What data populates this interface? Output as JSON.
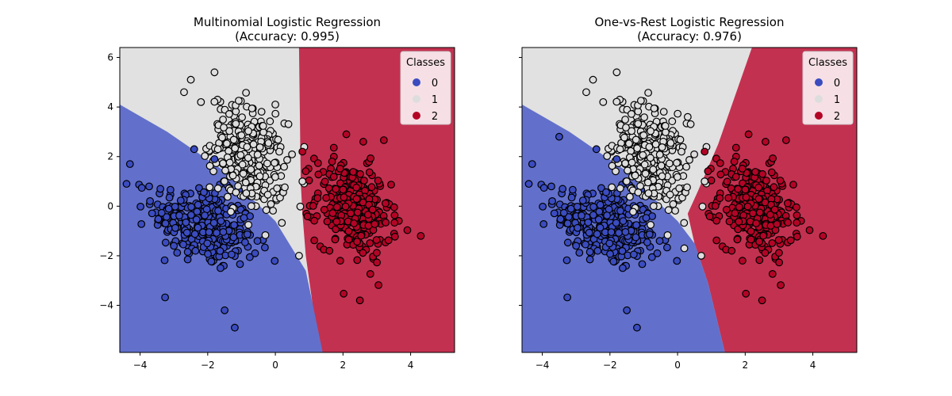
{
  "colors": {
    "class0": "#3b4cc0",
    "class1": "#dddddd",
    "class2": "#b40426",
    "region0": "#6270cb",
    "region1": "#e1e1e1",
    "region2": "#c33150",
    "marker_edge": "#000000"
  },
  "chart_data": [
    {
      "type": "scatter",
      "title_line1": "Multinomial Logistic Regression",
      "title_line2": "(Accuracy: 0.995)",
      "xlim": [
        -4.6,
        5.3
      ],
      "ylim": [
        -5.9,
        6.4
      ],
      "xticks": [
        -4,
        -2,
        0,
        2,
        4
      ],
      "yticks": [
        -4,
        -2,
        0,
        2,
        4,
        6
      ],
      "show_yticklabels": true,
      "grid": false,
      "legend": {
        "title": "Classes",
        "placement": "top-right",
        "entries": [
          {
            "label": "0",
            "class": 0
          },
          {
            "label": "1",
            "class": 1
          },
          {
            "label": "2",
            "class": 2
          }
        ]
      },
      "decision_boundaries": {
        "boundary_0_1": [
          [
            -4.6,
            4.1
          ],
          [
            -3.2,
            3.0
          ],
          [
            -1.6,
            1.5
          ],
          [
            0.0,
            -0.6
          ],
          [
            0.9,
            -2.6
          ],
          [
            1.4,
            -5.9
          ]
        ],
        "boundary_1_2": [
          [
            0.7,
            6.4
          ],
          [
            0.75,
            1.0
          ],
          [
            0.8,
            -0.3
          ],
          [
            0.9,
            -2.0
          ],
          [
            1.3,
            -5.9
          ]
        ]
      },
      "class_centers": [
        {
          "class": 0,
          "x": -2.1,
          "y": -0.8
        },
        {
          "class": 1,
          "x": -0.8,
          "y": 2.0
        },
        {
          "class": 2,
          "x": 2.3,
          "y": -0.1
        }
      ],
      "sample_points": [
        {
          "class": 0,
          "x": -4.3,
          "y": 1.7
        },
        {
          "class": 0,
          "x": -4.4,
          "y": 0.9
        },
        {
          "class": 0,
          "x": -3.4,
          "y": 0.7
        },
        {
          "class": 0,
          "x": -3.0,
          "y": -1.6
        },
        {
          "class": 0,
          "x": -1.5,
          "y": -4.2
        },
        {
          "class": 0,
          "x": -1.2,
          "y": -4.9
        },
        {
          "class": 0,
          "x": -0.6,
          "y": -1.9
        },
        {
          "class": 0,
          "x": -2.4,
          "y": 2.3
        },
        {
          "class": 0,
          "x": -1.8,
          "y": 1.9
        },
        {
          "class": 1,
          "x": -2.5,
          "y": 5.1
        },
        {
          "class": 1,
          "x": -1.8,
          "y": 5.4
        },
        {
          "class": 1,
          "x": -2.7,
          "y": 4.6
        },
        {
          "class": 1,
          "x": -2.2,
          "y": 4.2
        },
        {
          "class": 1,
          "x": 0.0,
          "y": 4.1
        },
        {
          "class": 1,
          "x": 0.7,
          "y": -2.0
        },
        {
          "class": 1,
          "x": -1.7,
          "y": 2.3
        },
        {
          "class": 1,
          "x": 0.8,
          "y": 1.0
        },
        {
          "class": 2,
          "x": 2.1,
          "y": 2.9
        },
        {
          "class": 2,
          "x": 2.6,
          "y": 2.6
        },
        {
          "class": 2,
          "x": 4.3,
          "y": -1.2
        },
        {
          "class": 2,
          "x": 2.5,
          "y": -3.8
        },
        {
          "class": 2,
          "x": 0.8,
          "y": 2.2
        },
        {
          "class": 2,
          "x": 1.6,
          "y": -1.8
        }
      ]
    },
    {
      "type": "scatter",
      "title_line1": "One-vs-Rest Logistic Regression",
      "title_line2": "(Accuracy: 0.976)",
      "xlim": [
        -4.6,
        5.3
      ],
      "ylim": [
        -5.9,
        6.4
      ],
      "xticks": [
        -4,
        -2,
        0,
        2,
        4
      ],
      "yticks": [
        -4,
        -2,
        0,
        2,
        4,
        6
      ],
      "show_yticklabels": false,
      "grid": false,
      "legend": {
        "title": "Classes",
        "placement": "top-right",
        "entries": [
          {
            "label": "0",
            "class": 0
          },
          {
            "label": "1",
            "class": 1
          },
          {
            "label": "2",
            "class": 2
          }
        ]
      },
      "decision_boundaries": {
        "boundary_0_1": [
          [
            -4.6,
            4.1
          ],
          [
            -3.2,
            3.0
          ],
          [
            -1.6,
            1.5
          ],
          [
            0.0,
            -0.6
          ],
          [
            0.5,
            -1.5
          ],
          [
            0.9,
            -3.1
          ],
          [
            1.4,
            -5.9
          ]
        ],
        "boundary_1_2": [
          [
            2.2,
            6.4
          ],
          [
            1.2,
            2.5
          ],
          [
            0.6,
            0.6
          ],
          [
            0.3,
            -0.3
          ],
          [
            0.5,
            -1.5
          ]
        ]
      },
      "class_centers": [
        {
          "class": 0,
          "x": -2.1,
          "y": -0.8
        },
        {
          "class": 1,
          "x": -0.8,
          "y": 2.0
        },
        {
          "class": 2,
          "x": 2.3,
          "y": -0.1
        }
      ],
      "sample_points": [
        {
          "class": 0,
          "x": -4.3,
          "y": 1.7
        },
        {
          "class": 0,
          "x": -4.4,
          "y": 0.9
        },
        {
          "class": 0,
          "x": -3.4,
          "y": 0.7
        },
        {
          "class": 0,
          "x": -3.0,
          "y": -1.6
        },
        {
          "class": 0,
          "x": -1.5,
          "y": -4.2
        },
        {
          "class": 0,
          "x": -1.2,
          "y": -4.9
        },
        {
          "class": 0,
          "x": -0.6,
          "y": -1.9
        },
        {
          "class": 0,
          "x": -2.4,
          "y": 2.3
        },
        {
          "class": 0,
          "x": -1.8,
          "y": 1.9
        },
        {
          "class": 0,
          "x": -3.5,
          "y": 2.8
        },
        {
          "class": 1,
          "x": -2.5,
          "y": 5.1
        },
        {
          "class": 1,
          "x": -1.8,
          "y": 5.4
        },
        {
          "class": 1,
          "x": -2.7,
          "y": 4.6
        },
        {
          "class": 1,
          "x": -2.2,
          "y": 4.2
        },
        {
          "class": 1,
          "x": 0.3,
          "y": 3.6
        },
        {
          "class": 1,
          "x": 0.7,
          "y": -2.0
        },
        {
          "class": 1,
          "x": -1.7,
          "y": 2.3
        },
        {
          "class": 1,
          "x": 0.8,
          "y": 1.0
        },
        {
          "class": 1,
          "x": 0.2,
          "y": -1.7
        },
        {
          "class": 2,
          "x": 2.1,
          "y": 2.9
        },
        {
          "class": 2,
          "x": 2.6,
          "y": 2.6
        },
        {
          "class": 2,
          "x": 4.3,
          "y": -1.2
        },
        {
          "class": 2,
          "x": 2.5,
          "y": -3.8
        },
        {
          "class": 2,
          "x": 0.8,
          "y": 2.2
        },
        {
          "class": 2,
          "x": 1.6,
          "y": -1.8
        }
      ]
    }
  ]
}
